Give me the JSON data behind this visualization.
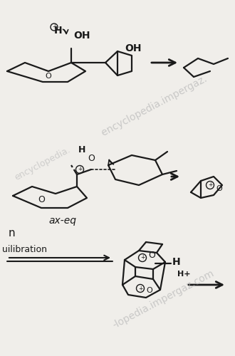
{
  "bg": "#f0eeea",
  "lc": "#1a1a1a",
  "tc": "#1a1a1a",
  "wc": "#b8b8b8",
  "lw": 1.6,
  "wm1": " encyclopedia.impergaz.",
  "wm2": "-lopedia.impergaz.com",
  "label_axeq": "ax-eq",
  "label_n": "n",
  "label_eq": "uilibration"
}
